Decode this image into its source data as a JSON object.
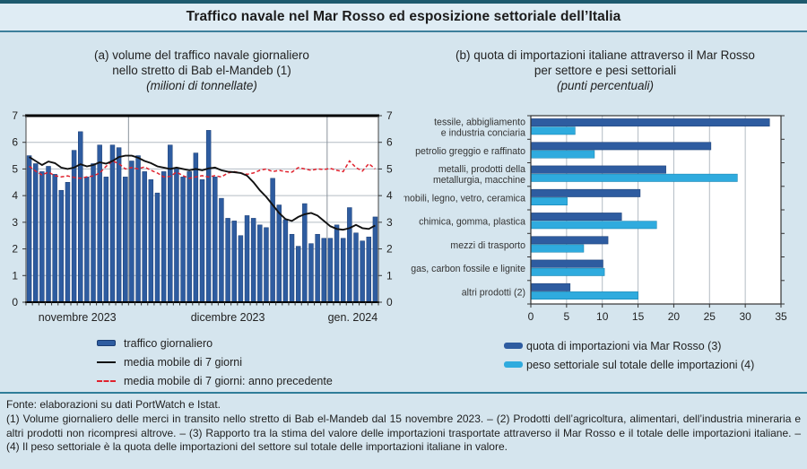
{
  "title": "Traffico navale nel Mar Rosso ed esposizione settoriale dell’Italia",
  "panel_a": {
    "title_line1": "(a) volume del traffico navale giornaliero",
    "title_line2": "nello stretto di Bab el-Mandeb (1)",
    "subtitle": "(milioni di tonnellate)",
    "legend": [
      {
        "swatch": "bar-blue",
        "label": "traffico giornaliero"
      },
      {
        "swatch": "line-black",
        "label": "media mobile di 7 giorni"
      },
      {
        "swatch": "line-red-dashed",
        "label": "media mobile di 7 giorni: anno precedente"
      }
    ]
  },
  "panel_b": {
    "title_line1": "(b) quota di importazioni italiane attraverso il Mar Rosso",
    "title_line2": "per settore e pesi settoriali",
    "subtitle": "(punti percentuali)",
    "legend": [
      {
        "swatch": "bar-dark-blue",
        "label": "quota di importazioni via Mar Rosso (3)"
      },
      {
        "swatch": "bar-light-blue",
        "label": "peso settoriale sul totale delle importazioni (4)"
      }
    ]
  },
  "footnotes": {
    "source": "Fonte: elaborazioni su dati PortWatch e Istat.",
    "notes": "(1) Volume giornaliero delle merci in transito nello stretto di Bab el-Mandeb dal 15 novembre 2023. – (2) Prodotti dell’agricoltura, alimentari, dell’industria mineraria e altri prodotti non ricompresi altrove. – (3) Rapporto tra la stima del valore delle importazioni trasportate attraverso il Mar Rosso e il totale delle importazioni italiane. – (4) Il peso settoriale è la quota delle importazioni del settore sul totale delle importazioni italiane in valore."
  },
  "colors": {
    "background": "#d5e5ee",
    "teal_border": "#1d5a6e",
    "teal_rule": "#2f7d99",
    "bar_blue": "#2e5ca0",
    "bar_blue_edge": "#1a3c72",
    "light_blue": "#2fabde",
    "light_blue_edge": "#0d7dab",
    "ma_black": "#111111",
    "ma_prev_red": "#e0222e",
    "gridline": "#b3bcc4",
    "month_gridline": "#8a939b"
  },
  "chart_data": [
    {
      "type": "bar",
      "title": "(a) volume del traffico navale giornaliero nello stretto di Bab el-Mandeb (1)",
      "ylabel": "milioni di tonnellate",
      "ylim": [
        0,
        7
      ],
      "yticks": [
        0,
        1,
        2,
        3,
        4,
        5,
        6,
        7
      ],
      "grid": true,
      "x_sections": [
        {
          "label": "novembre 2023",
          "days": 16
        },
        {
          "label": "dicembre 2023",
          "days": 31
        },
        {
          "label": "gen. 2024",
          "days": 8
        }
      ],
      "series": [
        {
          "name": "traffico giornaliero",
          "type": "bar",
          "values": [
            5.5,
            5.2,
            4.9,
            5.1,
            4.8,
            4.2,
            4.5,
            5.7,
            6.4,
            4.7,
            5.2,
            5.9,
            4.7,
            5.9,
            5.8,
            4.7,
            5.3,
            5.5,
            4.9,
            4.6,
            4.1,
            4.9,
            5.9,
            5.0,
            4.7,
            4.9,
            5.6,
            4.6,
            6.45,
            4.7,
            3.9,
            3.15,
            3.05,
            2.5,
            3.25,
            3.15,
            2.9,
            2.8,
            4.65,
            3.65,
            3.1,
            2.55,
            2.1,
            3.7,
            2.2,
            2.55,
            2.4,
            2.4,
            2.9,
            2.4,
            3.55,
            2.6,
            2.3,
            2.45,
            3.2
          ]
        },
        {
          "name": "media mobile di 7 giorni",
          "type": "line",
          "values": [
            5.45,
            5.3,
            5.15,
            5.28,
            5.22,
            5.05,
            5.0,
            5.05,
            5.18,
            5.1,
            5.15,
            5.25,
            5.2,
            5.3,
            5.45,
            5.5,
            5.5,
            5.42,
            5.3,
            5.22,
            5.1,
            5.05,
            5.0,
            5.05,
            5.0,
            4.95,
            5.0,
            4.95,
            5.02,
            5.05,
            4.95,
            4.9,
            4.88,
            4.85,
            4.75,
            4.5,
            4.2,
            3.95,
            3.65,
            3.35,
            3.12,
            3.05,
            3.2,
            3.3,
            3.35,
            3.25,
            3.05,
            2.85,
            2.75,
            2.72,
            2.78,
            2.9,
            2.78,
            2.75,
            2.88
          ]
        },
        {
          "name": "media mobile di 7 giorni: anno precedente",
          "type": "line-dashed",
          "values": [
            5.1,
            4.92,
            4.78,
            4.88,
            4.75,
            4.7,
            4.74,
            4.68,
            4.65,
            4.7,
            4.74,
            4.85,
            5.1,
            5.3,
            5.2,
            5.0,
            5.05,
            5.0,
            5.08,
            4.95,
            4.85,
            4.7,
            4.72,
            4.88,
            4.75,
            4.65,
            4.7,
            4.75,
            4.7,
            4.75,
            4.7,
            4.85,
            4.9,
            4.85,
            4.8,
            4.85,
            4.95,
            5.0,
            4.9,
            4.95,
            4.9,
            4.88,
            5.05,
            5.0,
            4.95,
            5.0,
            4.98,
            5.02,
            4.95,
            4.9,
            5.3,
            5.05,
            4.92,
            5.2,
            5.0
          ]
        }
      ]
    },
    {
      "type": "bar-horizontal",
      "title": "(b) quota di importazioni italiane attraverso il Mar Rosso per settore e pesi settoriali",
      "xlabel": "punti percentuali",
      "xlim": [
        0,
        35
      ],
      "xticks": [
        0,
        5,
        10,
        15,
        20,
        25,
        30,
        35
      ],
      "grid": true,
      "categories": [
        "tessile, abbigliamento\ne industria conciaria",
        "petrolio greggio e raffinato",
        "metalli, prodotti della\nmetallurgia, macchine",
        "mobili, legno, vetro, ceramica",
        "chimica, gomma, plastica",
        "mezzi di trasporto",
        "gas, carbon fossile e lignite",
        "altri prodotti (2)"
      ],
      "series": [
        {
          "name": "quota di importazioni via Mar Rosso (3)",
          "values": [
            33.4,
            25.2,
            18.9,
            15.3,
            12.7,
            10.8,
            10.1,
            5.5
          ]
        },
        {
          "name": "peso settoriale sul totale delle importazioni (4)",
          "values": [
            6.2,
            8.9,
            28.9,
            5.1,
            17.6,
            7.4,
            10.3,
            15.0
          ]
        }
      ]
    }
  ]
}
